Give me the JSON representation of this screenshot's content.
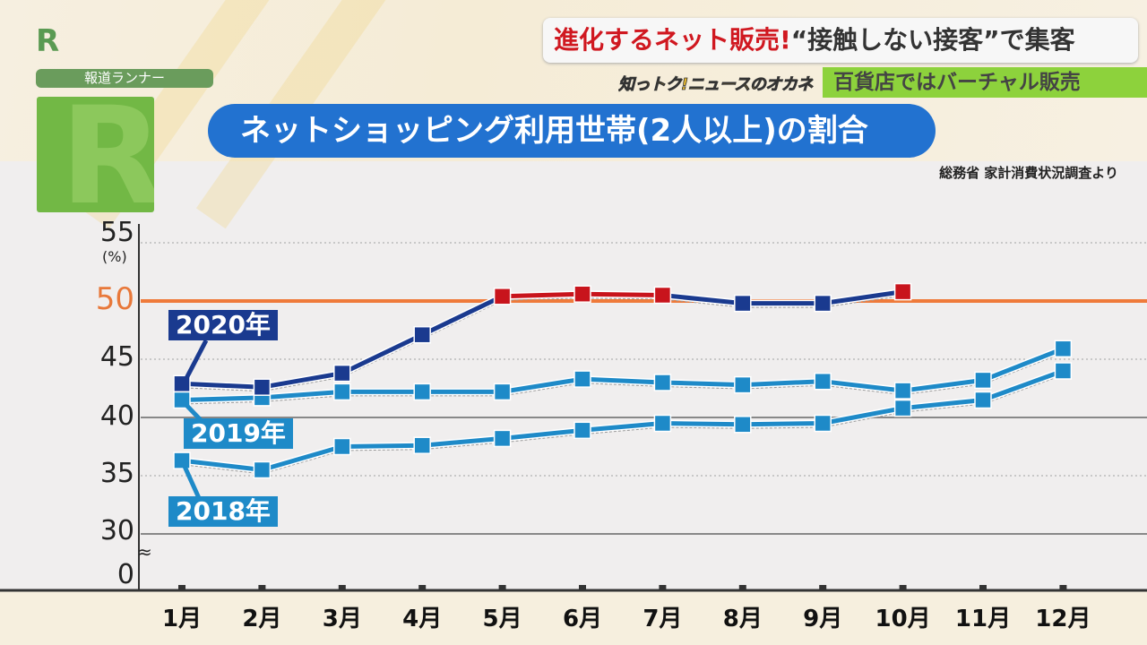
{
  "branding": {
    "station_logo": "R",
    "program_tag": "報道ランナー",
    "show_logo": "知っトク!ニュースのオカネ"
  },
  "headline": {
    "red_part": "進化するネット販売!",
    "dark_part": "“接触しない接客”で集客",
    "sub": "百貨店ではバーチャル販売"
  },
  "colors": {
    "navy": "#1a3a8f",
    "red": "#c8141c",
    "light_blue": "#1e8ac8",
    "threshold": "#ef7a3a",
    "title_bg": "#2272d0"
  },
  "chart_data": {
    "type": "line",
    "title": "ネットショッピング利用世帯(2人以上)の割合",
    "source": "総務省 家計消費状況調査より",
    "ylabel": "(%)",
    "ylim": [
      30,
      55
    ],
    "yticks": [
      "55",
      "50",
      "45",
      "40",
      "35",
      "30",
      "0"
    ],
    "axis_break": "≈",
    "highlight_line": 50,
    "categories": [
      "1月",
      "2月",
      "3月",
      "4月",
      "5月",
      "6月",
      "7月",
      "8月",
      "9月",
      "10月",
      "11月",
      "12月"
    ],
    "series": [
      {
        "name": "2020年",
        "values": [
          42.9,
          42.6,
          43.8,
          47.1,
          50.4,
          50.6,
          50.5,
          49.8,
          49.8,
          50.8,
          null,
          null
        ],
        "note": "values ≥ 50 drawn in red"
      },
      {
        "name": "2019年",
        "values": [
          41.5,
          41.7,
          42.2,
          42.2,
          42.2,
          43.3,
          43.0,
          42.8,
          43.1,
          42.3,
          43.2,
          45.9
        ]
      },
      {
        "name": "2018年",
        "values": [
          36.3,
          35.5,
          37.5,
          37.6,
          38.2,
          38.9,
          39.5,
          39.4,
          39.5,
          40.8,
          41.5,
          44.0
        ]
      }
    ]
  }
}
